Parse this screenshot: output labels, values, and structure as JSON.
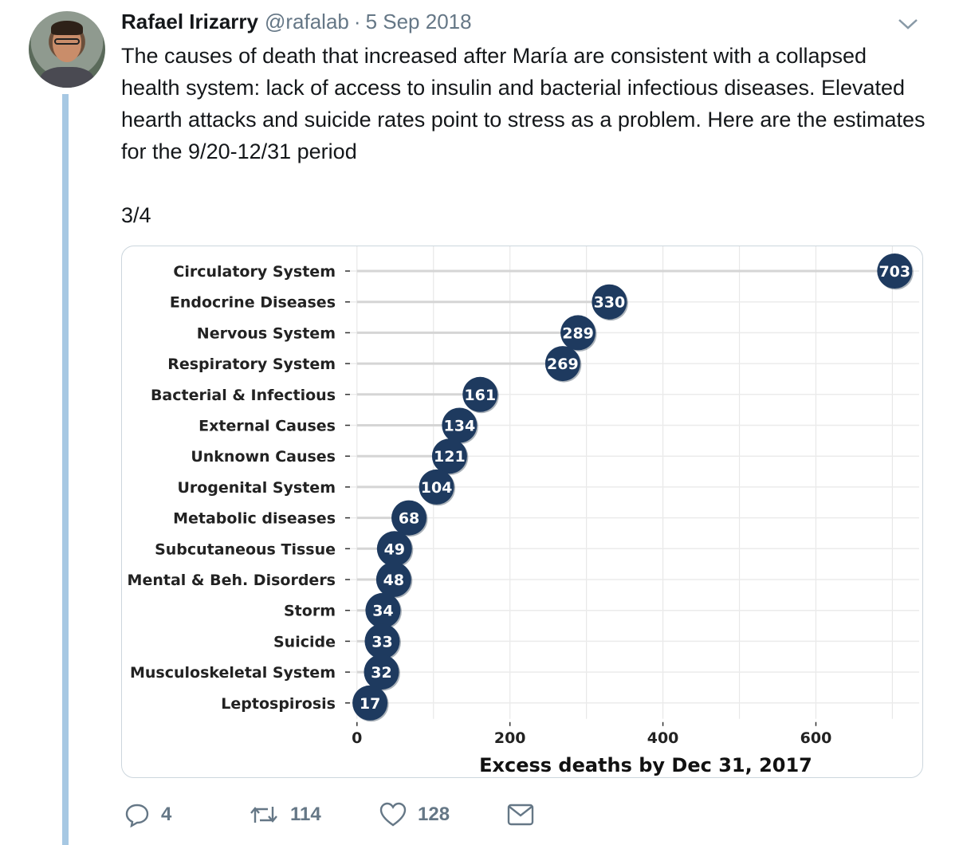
{
  "tweet": {
    "author_name": "Rafael Irizarry",
    "handle": "@rafalab",
    "separator": "·",
    "date": "5 Sep 2018",
    "text": "The causes of death that increased after María are consistent with a collapsed health system: lack of access to insulin and bacterial infectious diseases. Elevated hearth attacks and suicide rates point to stress as a problem. Here are the estimates for the 9/20-12/31 period",
    "page_count": "3/4",
    "icons": {
      "avatar": "profile-photo",
      "menu": "chevron-down-icon",
      "reply": "reply-icon",
      "retweet": "retweet-icon",
      "like": "heart-icon",
      "dm": "envelope-icon"
    },
    "actions": {
      "replies": "4",
      "retweets": "114",
      "likes": "128"
    },
    "colors": {
      "thread_line": "#a7c8e3",
      "muted": "#657786",
      "point": "#1e3a5f"
    }
  },
  "chart_data": {
    "type": "dot",
    "categories": [
      "Circulatory System",
      "Endocrine Diseases",
      "Nervous System",
      "Respiratory System",
      "Bacterial & Infectious",
      "External Causes",
      "Unknown Causes",
      "Urogenital System",
      "Metabolic diseases",
      "Subcutaneous Tissue",
      "Mental & Beh. Disorders",
      "Storm",
      "Suicide",
      "Musculoskeletal System",
      "Leptospirosis"
    ],
    "values": [
      703,
      330,
      289,
      269,
      161,
      134,
      121,
      104,
      68,
      49,
      48,
      34,
      33,
      32,
      17
    ],
    "xlabel": "Excess deaths by Dec 31, 2017",
    "ylabel": "",
    "xticks": [
      0,
      200,
      400,
      600
    ],
    "xlim": [
      -5,
      735
    ],
    "grid": true,
    "point_color": "#1e3a5f"
  }
}
